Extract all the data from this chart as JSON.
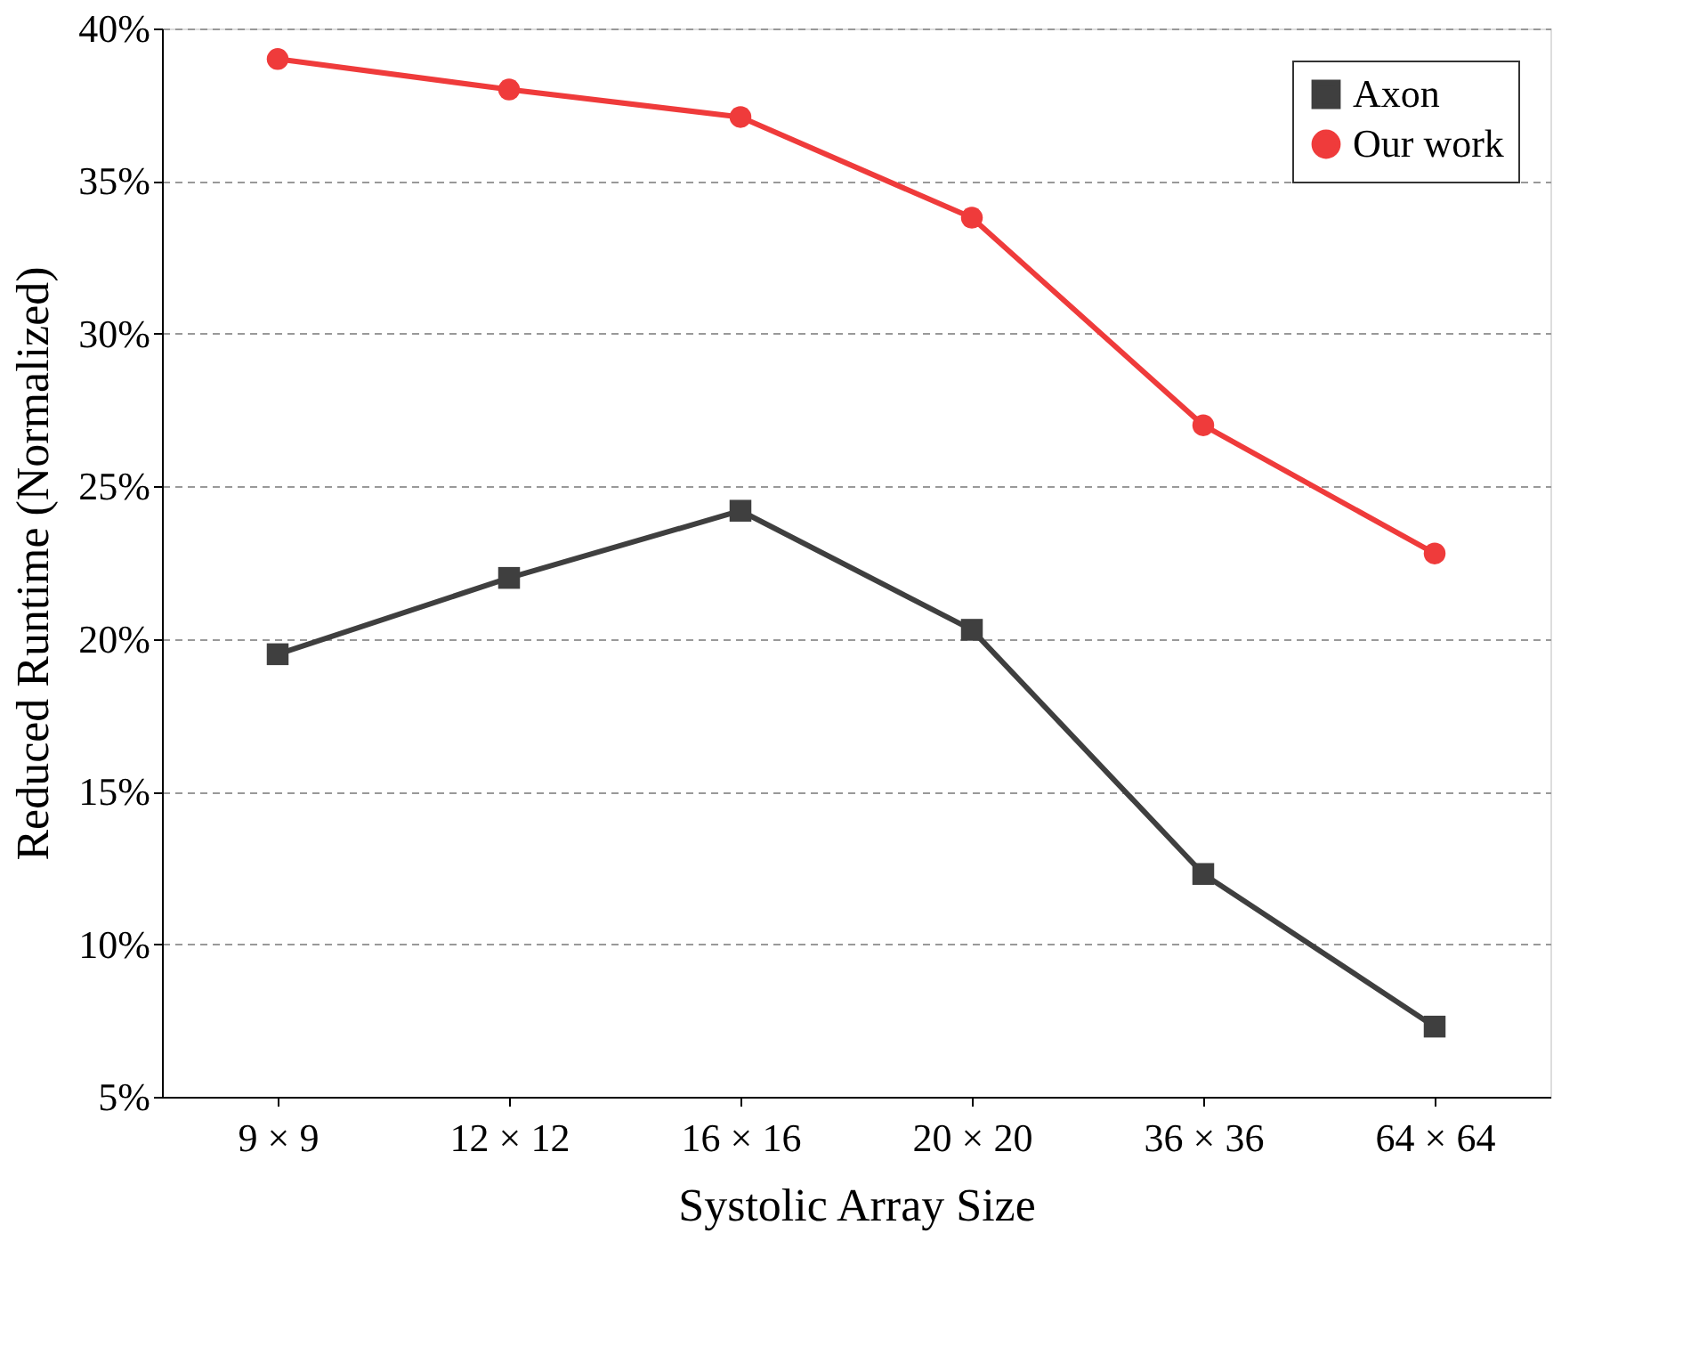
{
  "chart_data": {
    "type": "line",
    "xlabel": "Systolic Array Size",
    "ylabel": "Reduced Runtime (Normalized)",
    "categories": [
      "9 × 9",
      "12 × 12",
      "16 × 16",
      "20 × 20",
      "36 × 36",
      "64 × 64"
    ],
    "ylim": [
      5,
      40
    ],
    "yticks": [
      {
        "value": 5,
        "label": "5%"
      },
      {
        "value": 10,
        "label": "10%"
      },
      {
        "value": 15,
        "label": "15%"
      },
      {
        "value": 20,
        "label": "20%"
      },
      {
        "value": 25,
        "label": "25%"
      },
      {
        "value": 30,
        "label": "30%"
      },
      {
        "value": 35,
        "label": "35%"
      },
      {
        "value": 40,
        "label": "40%"
      }
    ],
    "grid": "y",
    "legend": "top right",
    "line_style": "solid",
    "series": [
      {
        "name": "Axon",
        "color": "#3f3f3f",
        "marker": "square",
        "values": [
          19.5,
          22.0,
          24.2,
          20.3,
          12.3,
          7.3
        ]
      },
      {
        "name": "Our work",
        "color": "#ef3b3b",
        "marker": "circle",
        "values": [
          39.0,
          38.0,
          37.1,
          33.8,
          27.0,
          22.8
        ]
      }
    ]
  }
}
